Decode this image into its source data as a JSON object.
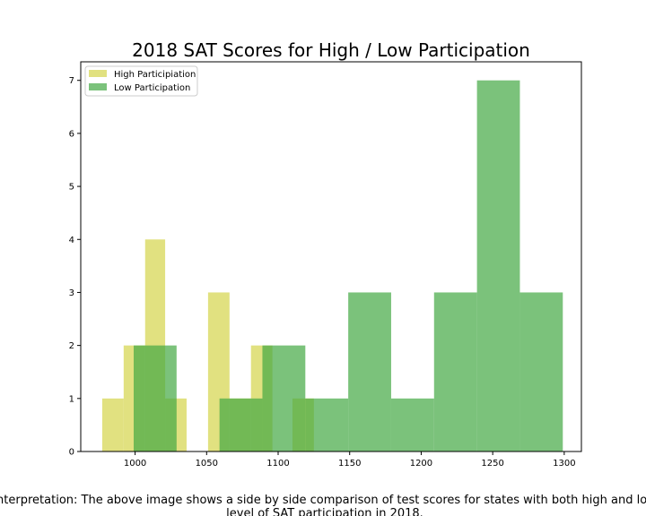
{
  "chart_data": {
    "type": "bar",
    "subtype": "overlapping-histogram",
    "title": "2018 SAT Scores for High / Low Participation",
    "xlabel": "",
    "ylabel": "",
    "xlim": [
      962,
      1312
    ],
    "ylim": [
      0,
      7.35
    ],
    "xticks": [
      1000,
      1050,
      1100,
      1150,
      1200,
      1250,
      1300
    ],
    "yticks": [
      0,
      1,
      2,
      3,
      4,
      5,
      6,
      7
    ],
    "grid": false,
    "legend_position": "upper-left",
    "series": [
      {
        "name": "High Participiation",
        "color": "#d4d44a",
        "opacity": 0.7,
        "bins": [
          {
            "x0": 977,
            "x1": 992,
            "count": 1
          },
          {
            "x0": 992,
            "x1": 1007,
            "count": 2
          },
          {
            "x0": 1007,
            "x1": 1021,
            "count": 4
          },
          {
            "x0": 1021,
            "x1": 1036,
            "count": 1
          },
          {
            "x0": 1036,
            "x1": 1051,
            "count": 0
          },
          {
            "x0": 1051,
            "x1": 1066,
            "count": 3
          },
          {
            "x0": 1066,
            "x1": 1081,
            "count": 1
          },
          {
            "x0": 1081,
            "x1": 1096,
            "count": 2
          },
          {
            "x0": 1096,
            "x1": 1110,
            "count": 0
          },
          {
            "x0": 1110,
            "x1": 1125,
            "count": 1
          }
        ]
      },
      {
        "name": "Low Participation",
        "color": "#43a843",
        "opacity": 0.7,
        "bins": [
          {
            "x0": 999,
            "x1": 1029,
            "count": 2
          },
          {
            "x0": 1029,
            "x1": 1059,
            "count": 0
          },
          {
            "x0": 1059,
            "x1": 1089,
            "count": 1
          },
          {
            "x0": 1089,
            "x1": 1119,
            "count": 2
          },
          {
            "x0": 1119,
            "x1": 1149,
            "count": 1
          },
          {
            "x0": 1149,
            "x1": 1179,
            "count": 3
          },
          {
            "x0": 1179,
            "x1": 1209,
            "count": 1
          },
          {
            "x0": 1209,
            "x1": 1239,
            "count": 3
          },
          {
            "x0": 1239,
            "x1": 1269,
            "count": 7
          },
          {
            "x0": 1269,
            "x1": 1299,
            "count": 3
          }
        ]
      }
    ],
    "caption_lines": [
      "Interpretation: The above image shows a side by side comparison of test scores for states with both high and low",
      "level of SAT participation in 2018."
    ]
  }
}
